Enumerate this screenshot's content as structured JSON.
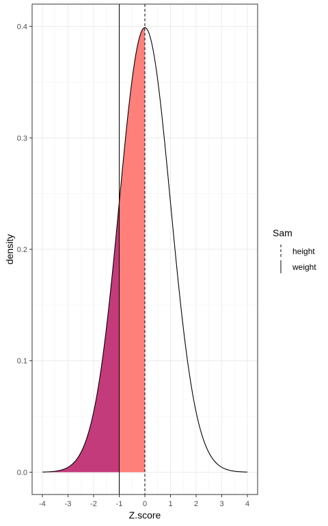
{
  "chart_data": {
    "type": "area",
    "xlabel": "Z.score",
    "ylabel": "density",
    "xlim": [
      -4.4,
      4.4
    ],
    "ylim": [
      -0.02,
      0.42
    ],
    "x_ticks": [
      -4,
      -3,
      -2,
      -1,
      0,
      1,
      2,
      3,
      4
    ],
    "x_tick_labels": [
      "-4",
      "-3",
      "-2",
      "-1",
      "0",
      "1",
      "2",
      "3",
      "4"
    ],
    "y_ticks": [
      0.0,
      0.1,
      0.2,
      0.3,
      0.4
    ],
    "y_tick_labels": [
      "0.0",
      "0.1",
      "0.2",
      "0.3",
      "0.4"
    ],
    "grid": true,
    "legend_position": "right",
    "curve": {
      "x": [
        -4,
        -3.5,
        -3,
        -2.5,
        -2,
        -1.5,
        -1,
        -0.5,
        0,
        0.5,
        1,
        1.5,
        2,
        2.5,
        3,
        3.5,
        4
      ],
      "y": [
        0.0001,
        0.0009,
        0.0044,
        0.0175,
        0.054,
        0.1295,
        0.242,
        0.3521,
        0.3989,
        0.3521,
        0.242,
        0.1295,
        0.054,
        0.0175,
        0.0044,
        0.0009,
        0.0001
      ]
    },
    "shaded_regions": [
      {
        "from": -4,
        "to": -1,
        "color": "#C43B7C"
      },
      {
        "from": -1,
        "to": 0,
        "color": "#FF7F7A"
      }
    ],
    "vlines": [
      {
        "x": 0,
        "linetype": "dashed"
      },
      {
        "x": -1,
        "linetype": "solid"
      }
    ]
  },
  "legend": {
    "title": "Sam",
    "items": [
      {
        "label": "height",
        "linetype": "dashed"
      },
      {
        "label": "weight",
        "linetype": "solid"
      }
    ]
  }
}
